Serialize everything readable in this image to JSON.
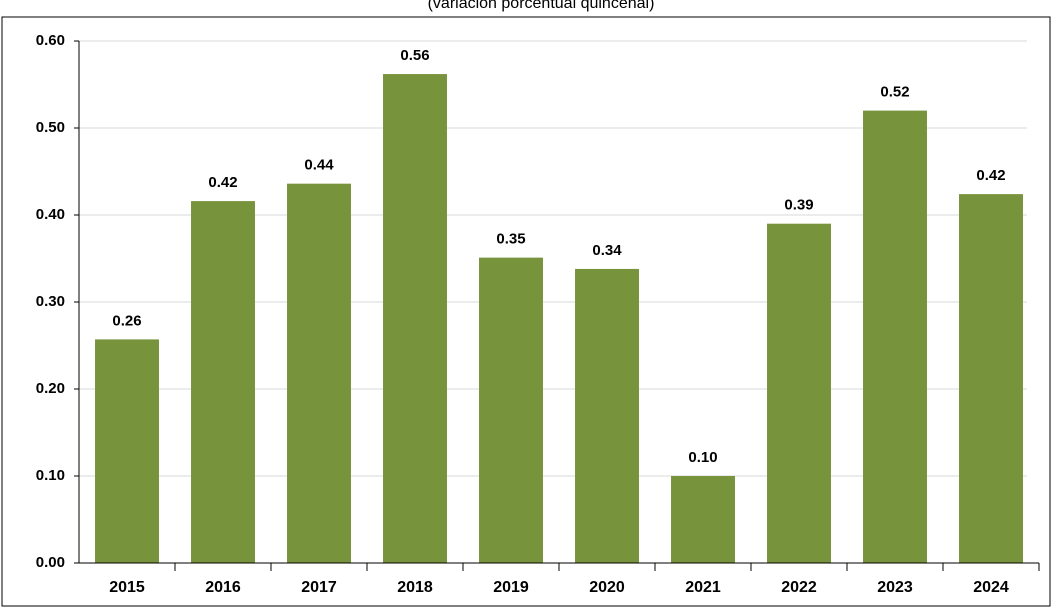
{
  "chart_data": {
    "type": "bar",
    "subtitle": "(variación porcentual quincenal)",
    "categories": [
      "2015",
      "2016",
      "2017",
      "2018",
      "2019",
      "2020",
      "2021",
      "2022",
      "2023",
      "2024"
    ],
    "values": [
      0.257,
      0.416,
      0.436,
      0.562,
      0.351,
      0.338,
      0.1,
      0.39,
      0.52,
      0.424
    ],
    "value_labels": [
      "0.26",
      "0.42",
      "0.44",
      "0.56",
      "0.35",
      "0.34",
      "0.10",
      "0.39",
      "0.52",
      "0.42"
    ],
    "color": "#77933c",
    "ylim": [
      0,
      0.6
    ],
    "yticks": [
      {
        "value": 0,
        "label": "0.00"
      },
      {
        "value": 0.1,
        "label": "0.10"
      },
      {
        "value": 0.2,
        "label": "0.20"
      },
      {
        "value": 0.3,
        "label": "0.30"
      },
      {
        "value": 0.4,
        "label": "0.40"
      },
      {
        "value": 0.5,
        "label": "0.50"
      },
      {
        "value": 0.6,
        "label": "0.60"
      }
    ],
    "grid": true
  }
}
